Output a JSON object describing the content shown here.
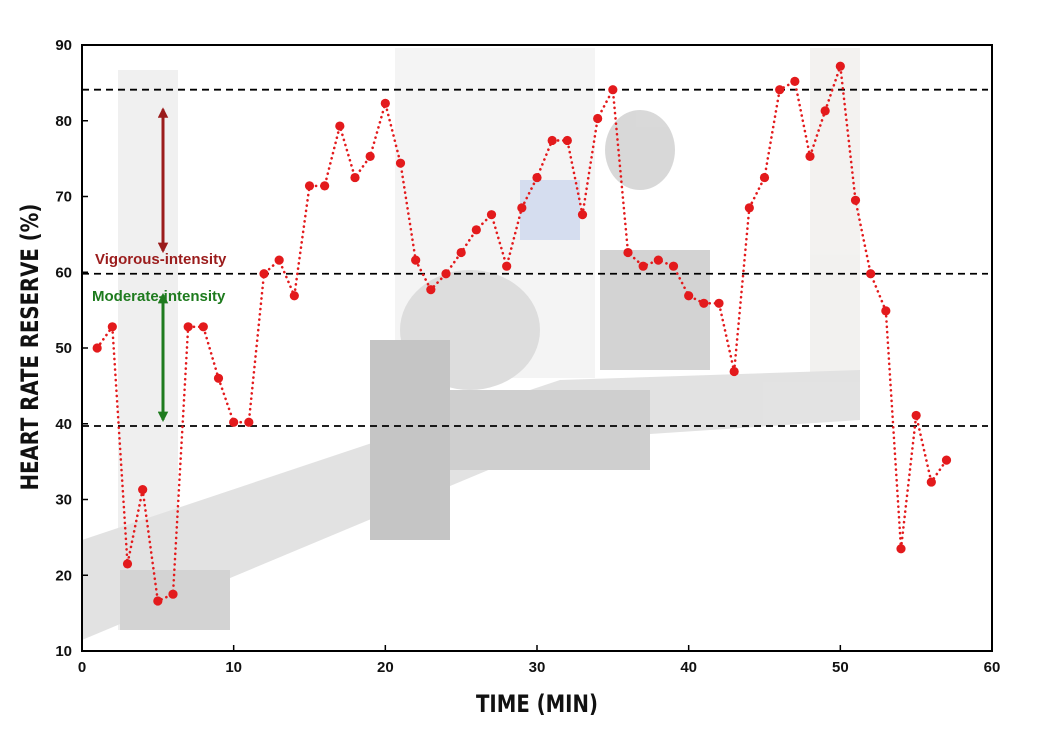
{
  "chart_data": {
    "type": "line",
    "title": "",
    "xlabel": "TIME (MIN)",
    "ylabel": "HEART RATE RESERVE (%)",
    "xlim": [
      0,
      60
    ],
    "ylim": [
      10,
      90
    ],
    "x_ticks": [
      0,
      10,
      20,
      30,
      40,
      50,
      60
    ],
    "y_ticks": [
      10,
      20,
      30,
      40,
      50,
      60,
      70,
      80,
      90
    ],
    "grid": false,
    "series": [
      {
        "name": "",
        "color": "#e31a1c",
        "x": [
          1,
          2,
          3,
          4,
          5,
          6,
          7,
          8,
          9,
          10,
          11,
          12,
          13,
          14,
          15,
          16,
          17,
          18,
          19,
          20,
          21,
          22,
          23,
          24,
          25,
          26,
          27,
          28,
          29,
          30,
          31,
          32,
          33,
          34,
          35,
          36,
          37,
          38,
          39,
          40,
          41,
          42,
          43,
          44,
          45,
          46,
          47,
          48,
          49,
          50,
          51,
          52,
          53,
          54,
          55,
          56,
          57
        ],
        "y": [
          50,
          52.8,
          21.5,
          31.3,
          16.6,
          17.5,
          52.8,
          52.8,
          46,
          40.2,
          40.2,
          59.8,
          61.6,
          56.9,
          71.4,
          71.4,
          79.3,
          72.5,
          75.3,
          82.3,
          74.4,
          61.6,
          57.7,
          59.8,
          62.6,
          65.6,
          67.6,
          60.8,
          68.5,
          72.5,
          77.4,
          77.4,
          67.6,
          80.3,
          84.1,
          62.6,
          60.8,
          61.6,
          60.8,
          56.9,
          55.9,
          55.9,
          46.9,
          68.5,
          72.5,
          84.1,
          85.2,
          75.3,
          81.3,
          87.2,
          69.5,
          59.8,
          54.9,
          23.5,
          41.1,
          32.3,
          35.2
        ]
      }
    ],
    "reference_lines": [
      {
        "y": 84.1,
        "style": "dashed",
        "color": "#000000"
      },
      {
        "y": 59.8,
        "style": "dashed",
        "color": "#000000"
      },
      {
        "y": 39.7,
        "style": "dashed",
        "color": "#000000"
      }
    ],
    "annotations": [
      {
        "text": "Vigorous-intensity",
        "color": "#9b1c1c",
        "arrow_from": 62.8,
        "arrow_to": 81.5
      },
      {
        "text": "Moderate-intensity",
        "color": "#1e7b1e",
        "arrow_from": 40.5,
        "arrow_to": 57
      }
    ]
  }
}
